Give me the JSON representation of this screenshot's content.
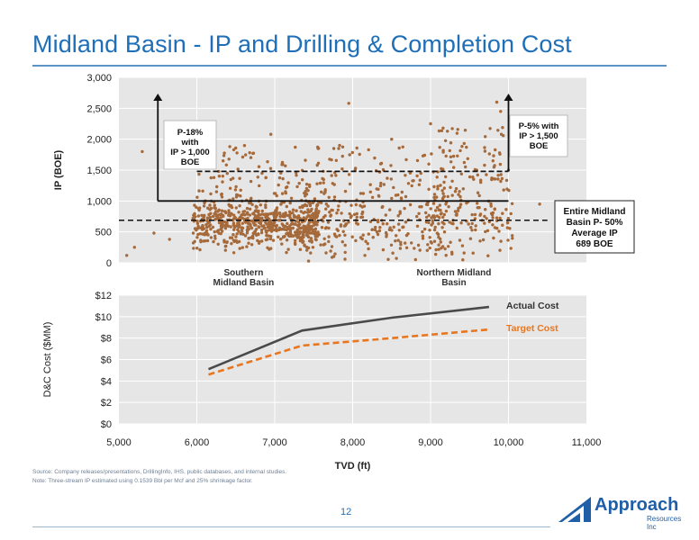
{
  "slide": {
    "title": "Midland Basin - IP and Drilling & Completion Cost",
    "source_note": "Source: Company releases/presentations, DrillingInfo, IHS, public databases, and internal studies.",
    "note": "Note: Three-stream IP estimated using 0.1539 Bbl per Mcf and 25% shrinkage factor.",
    "page_number": "12",
    "logo_text": "Approach",
    "logo_sub": "Resources Inc"
  },
  "chart_data": [
    {
      "type": "scatter",
      "title": "",
      "ylabel": "IP (BOE)",
      "xlabel": "",
      "xlim": [
        5000,
        11000
      ],
      "ylim": [
        0,
        3000
      ],
      "yticks": [
        "0",
        "500",
        "1,000",
        "1,500",
        "2,000",
        "2,500",
        "3,000"
      ],
      "grid": true,
      "point_color": "#a5693a",
      "note": "Approximate scatter of well IPs vs TVD; dense cluster 500-800 BOE at 6,000-7,500 ft",
      "reference_lines": [
        {
          "name": "Average IP",
          "y": 689,
          "style": "dashed",
          "x_range": [
            5000,
            10500
          ]
        },
        {
          "name": "IP > 1,000",
          "y": 1000,
          "style": "solid",
          "x_range": [
            5500,
            10000
          ]
        },
        {
          "name": "IP > 1,500",
          "y": 1480,
          "style": "dashed",
          "x_range": [
            6000,
            10000
          ]
        }
      ],
      "region_labels": [
        {
          "text": "Southern\nMidland Basin",
          "x": 6600
        },
        {
          "text": "Northern Midland\nBasin",
          "x": 9300
        }
      ],
      "annotations": [
        {
          "text": "P-18%\nwith\nIP > 1,000\nBOE"
        },
        {
          "text": "P-5% with\nIP > 1,500\nBOE"
        },
        {
          "text": "Entire Midland\nBasin P- 50%\nAverage IP\n689 BOE"
        }
      ]
    },
    {
      "type": "line",
      "title": "",
      "xlabel": "TVD (ft)",
      "ylabel": "D&C Cost ($MM)",
      "xlim": [
        5000,
        11000
      ],
      "ylim": [
        0,
        12
      ],
      "xticks": [
        "5,000",
        "6,000",
        "7,000",
        "8,000",
        "9,000",
        "10,000",
        "11,000"
      ],
      "yticks": [
        "$0",
        "$2",
        "$4",
        "$6",
        "$8",
        "$10",
        "$12"
      ],
      "grid": true,
      "series": [
        {
          "name": "Actual Cost",
          "color": "#4a4a4a",
          "style": "solid",
          "x": [
            6150,
            7350,
            8500,
            9750
          ],
          "y": [
            5.1,
            8.7,
            9.9,
            10.9
          ]
        },
        {
          "name": "Target Cost",
          "color": "#e8761f",
          "style": "dashed",
          "x": [
            6150,
            7350,
            8500,
            9750
          ],
          "y": [
            4.6,
            7.3,
            8.0,
            8.8
          ]
        }
      ]
    }
  ]
}
